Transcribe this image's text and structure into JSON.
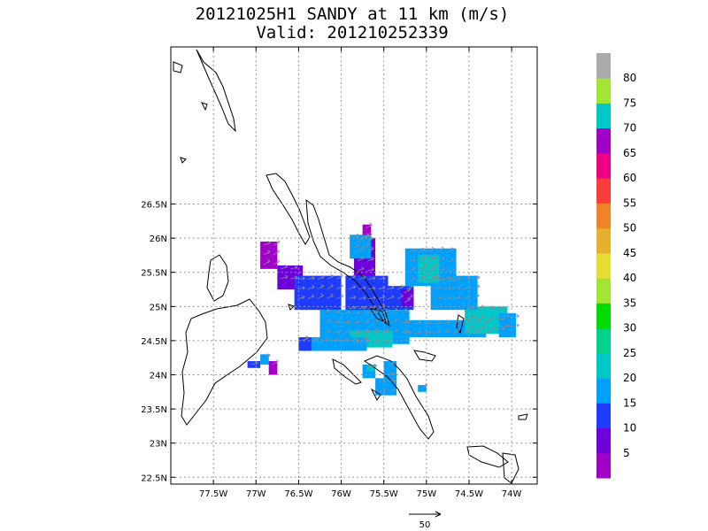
{
  "chart_data": {
    "type": "heatmap",
    "title": "20121025H1 SANDY at 11 km (m/s)",
    "subtitle": "Valid: 201210252339",
    "x_range": [
      -78.0,
      -73.7
    ],
    "y_range": [
      22.4,
      28.8
    ],
    "x_ticks": [
      "77.5W",
      "77W",
      "76.5W",
      "76W",
      "75.5W",
      "75W",
      "74.5W",
      "74W"
    ],
    "x_tick_values": [
      -77.5,
      -77.0,
      -76.5,
      -76.0,
      -75.5,
      -75.0,
      -74.5,
      -74.0
    ],
    "y_ticks": [
      "22.5N",
      "23N",
      "23.5N",
      "24N",
      "24.5N",
      "25N",
      "25.5N",
      "26N",
      "26.5N"
    ],
    "y_tick_values": [
      22.5,
      23.0,
      23.5,
      24.0,
      24.5,
      25.0,
      25.5,
      26.0,
      26.5
    ],
    "grid": true,
    "colorbar": {
      "labels": [
        "5",
        "10",
        "15",
        "20",
        "25",
        "30",
        "35",
        "40",
        "45",
        "50",
        "55",
        "60",
        "65",
        "70",
        "75",
        "80"
      ],
      "colors": [
        "#a000c8",
        "#6e00dc",
        "#1e3cff",
        "#00a0ff",
        "#00c8c8",
        "#00d28c",
        "#00dc00",
        "#a0e632",
        "#e6dc32",
        "#e6af2d",
        "#f08228",
        "#fa3c3c",
        "#f00082",
        "#a000c8",
        "#00c8c8",
        "#a0e632",
        "#aaaaaa"
      ]
    },
    "reference_vector": {
      "label": "50",
      "value": 50
    },
    "wind_regions": [
      {
        "lon": [
          -76.95,
          -76.75
        ],
        "lat": [
          25.55,
          25.95
        ],
        "speed": 5
      },
      {
        "lon": [
          -76.75,
          -76.45
        ],
        "lat": [
          25.25,
          25.6
        ],
        "speed": 10
      },
      {
        "lon": [
          -76.55,
          -76.0
        ],
        "lat": [
          24.95,
          25.45
        ],
        "speed": 15
      },
      {
        "lon": [
          -75.85,
          -75.6
        ],
        "lat": [
          25.4,
          26.0
        ],
        "speed": 10
      },
      {
        "lon": [
          -75.75,
          -75.65
        ],
        "lat": [
          25.95,
          26.2
        ],
        "speed": 5
      },
      {
        "lon": [
          -75.9,
          -75.65
        ],
        "lat": [
          25.7,
          26.05
        ],
        "speed": 20
      },
      {
        "lon": [
          -75.95,
          -75.45
        ],
        "lat": [
          24.85,
          25.45
        ],
        "speed": 15
      },
      {
        "lon": [
          -75.5,
          -75.15
        ],
        "lat": [
          24.95,
          25.3
        ],
        "speed": 15
      },
      {
        "lon": [
          -75.3,
          -75.15
        ],
        "lat": [
          25.0,
          25.25
        ],
        "speed": 10
      },
      {
        "lon": [
          -76.25,
          -75.2
        ],
        "lat": [
          24.45,
          24.95
        ],
        "speed": 20
      },
      {
        "lon": [
          -75.9,
          -75.4
        ],
        "lat": [
          24.4,
          24.65
        ],
        "speed": 25
      },
      {
        "lon": [
          -76.5,
          -75.7
        ],
        "lat": [
          24.35,
          24.55
        ],
        "speed": 20
      },
      {
        "lon": [
          -76.5,
          -76.35
        ],
        "lat": [
          24.35,
          24.55
        ],
        "speed": 15
      },
      {
        "lon": [
          -75.3,
          -74.3
        ],
        "lat": [
          24.55,
          24.8
        ],
        "speed": 20
      },
      {
        "lon": [
          -74.55,
          -74.05
        ],
        "lat": [
          24.6,
          25.0
        ],
        "speed": 25
      },
      {
        "lon": [
          -74.15,
          -73.95
        ],
        "lat": [
          24.55,
          24.9
        ],
        "speed": 20
      },
      {
        "lon": [
          -75.25,
          -74.65
        ],
        "lat": [
          25.3,
          25.85
        ],
        "speed": 20
      },
      {
        "lon": [
          -74.95,
          -74.4
        ],
        "lat": [
          24.95,
          25.45
        ],
        "speed": 20
      },
      {
        "lon": [
          -75.1,
          -74.85
        ],
        "lat": [
          25.35,
          25.75
        ],
        "speed": 25
      },
      {
        "lon": [
          -77.1,
          -76.95
        ],
        "lat": [
          24.1,
          24.2
        ],
        "speed": 15
      },
      {
        "lon": [
          -76.95,
          -76.85
        ],
        "lat": [
          24.15,
          24.3
        ],
        "speed": 20
      },
      {
        "lon": [
          -76.85,
          -76.75
        ],
        "lat": [
          24.0,
          24.2
        ],
        "speed": 5
      },
      {
        "lon": [
          -75.75,
          -75.6
        ],
        "lat": [
          23.95,
          24.15
        ],
        "speed": 20
      },
      {
        "lon": [
          -75.7,
          -75.6
        ],
        "lat": [
          24.05,
          24.15
        ],
        "speed": 25
      },
      {
        "lon": [
          -75.5,
          -75.35
        ],
        "lat": [
          23.9,
          24.2
        ],
        "speed": 20
      },
      {
        "lon": [
          -75.6,
          -75.35
        ],
        "lat": [
          23.7,
          23.95
        ],
        "speed": 20
      },
      {
        "lon": [
          -75.1,
          -75.0
        ],
        "lat": [
          23.75,
          23.85
        ],
        "speed": 20
      }
    ]
  }
}
